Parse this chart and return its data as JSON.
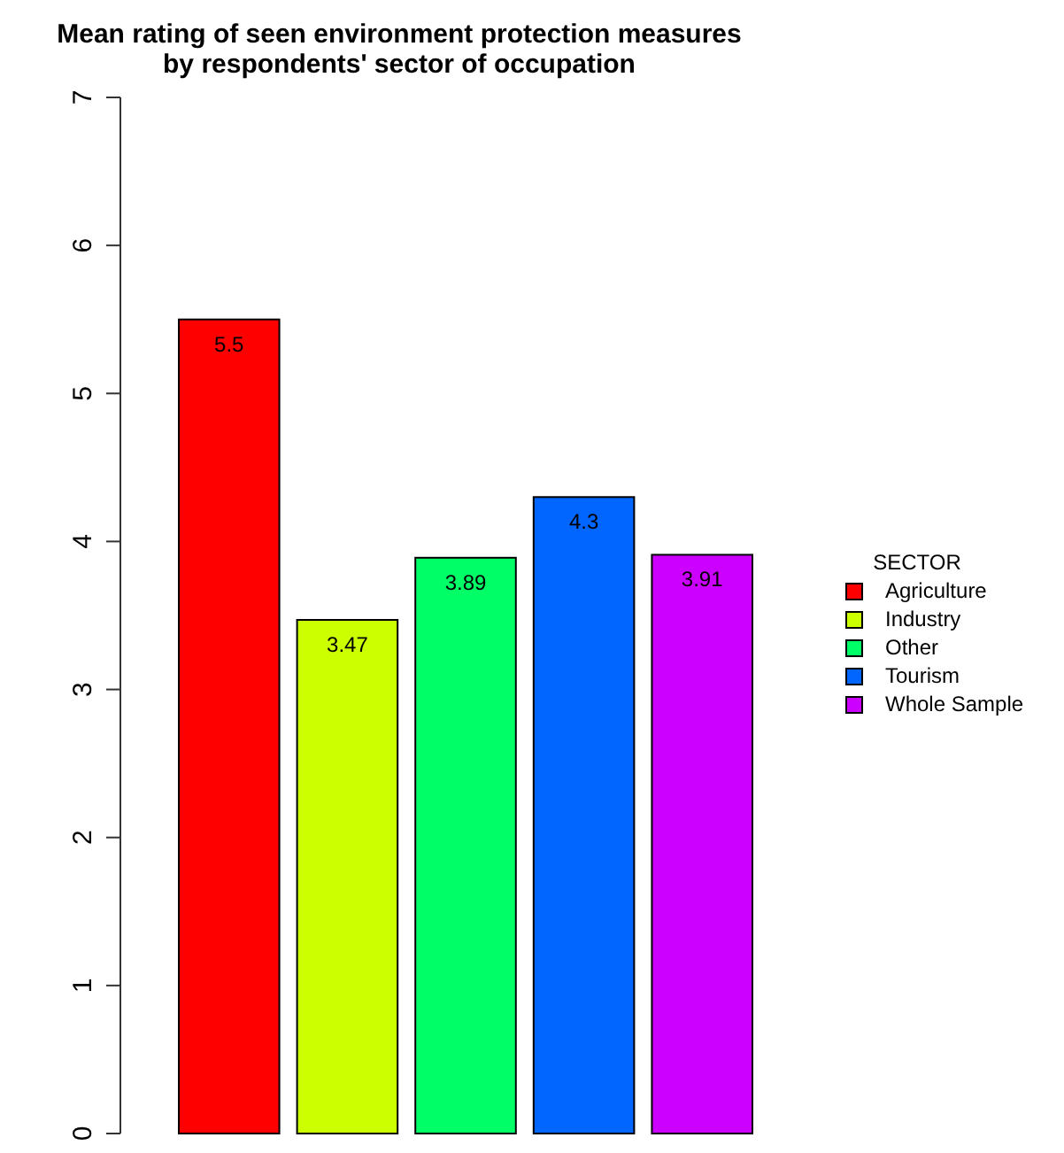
{
  "chart_data": {
    "type": "bar",
    "title": "Mean rating of seen environment protection measures\nby respondents' sector of occupation",
    "legend_title": "SECTOR",
    "categories": [
      null
    ],
    "series": [
      {
        "name": "Agriculture",
        "color": "#ff0000",
        "values": [
          5.5
        ]
      },
      {
        "name": "Industry",
        "color": "#ccff00",
        "values": [
          3.47
        ]
      },
      {
        "name": "Other",
        "color": "#00ff66",
        "values": [
          3.89
        ]
      },
      {
        "name": "Tourism",
        "color": "#0066ff",
        "values": [
          4.3
        ]
      },
      {
        "name": "Whole Sample",
        "color": "#cc00ff",
        "values": [
          3.91
        ]
      }
    ],
    "ylim": [
      0,
      7
    ],
    "yticks": [
      0,
      1,
      2,
      3,
      4,
      5,
      6,
      7
    ],
    "data_labels": true,
    "legend": "right",
    "grid": false
  }
}
